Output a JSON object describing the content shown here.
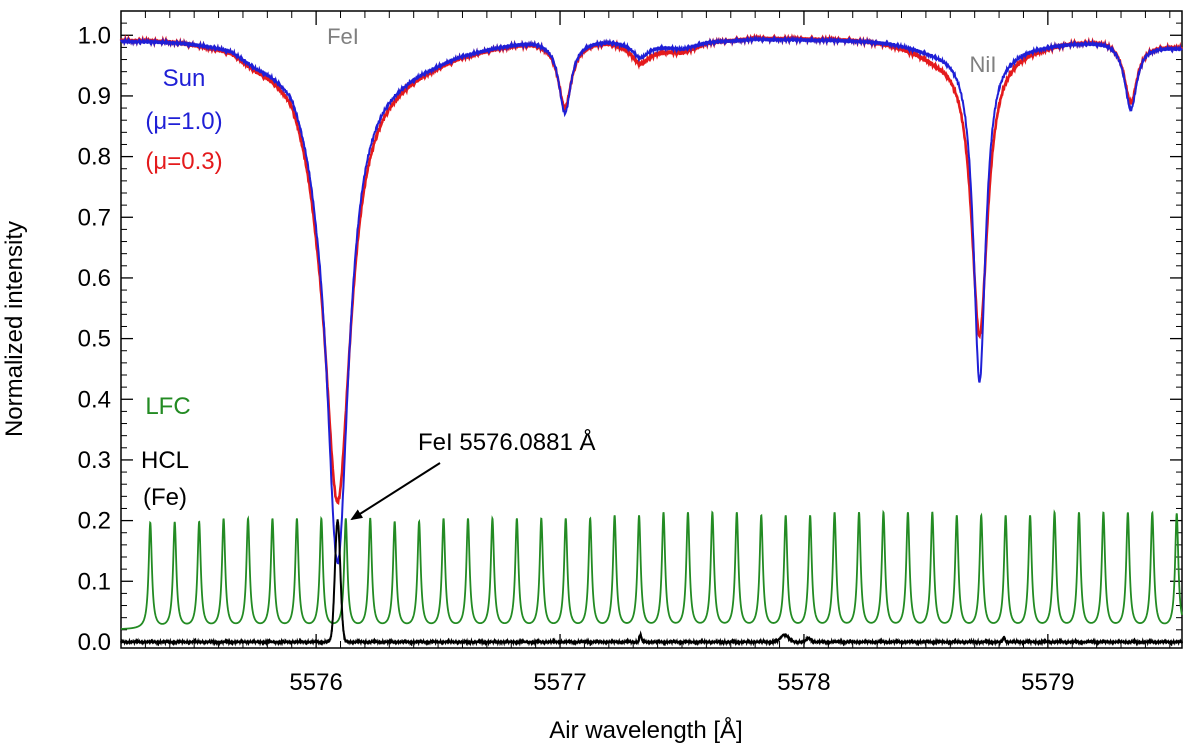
{
  "chart_data": {
    "type": "line",
    "xlabel": "Air wavelength [Å]",
    "ylabel": "Normalized intensity",
    "xlim": [
      5575.2,
      5579.55
    ],
    "ylim": [
      -0.01,
      1.04
    ],
    "x_ticks": [
      5576,
      5577,
      5578,
      5579
    ],
    "x_tick_labels": [
      "5576",
      "5577",
      "5578",
      "5579"
    ],
    "y_ticks": [
      0.0,
      0.1,
      0.2,
      0.3,
      0.4,
      0.5,
      0.6,
      0.7,
      0.8,
      0.9,
      1.0
    ],
    "y_tick_labels": [
      "0.0",
      "0.1",
      "0.2",
      "0.3",
      "0.4",
      "0.5",
      "0.6",
      "0.7",
      "0.8",
      "0.9",
      "1.0"
    ],
    "grid": false,
    "colors": {
      "sun_mu10": "#1f1fd6",
      "sun_mu03": "#e41a1c",
      "lfc": "#238b23",
      "hcl": "#000000",
      "line_label": "#808080",
      "annotation": "#000000"
    },
    "series": [
      {
        "name": "(μ=1.0)",
        "key": "sun_mu10",
        "continuum": [
          [
            5575.2,
            0.993
          ],
          [
            5575.4,
            0.993
          ],
          [
            5575.55,
            0.99
          ],
          [
            5575.65,
            0.985
          ],
          [
            5575.75,
            0.965
          ],
          [
            5575.9,
            0.955
          ],
          [
            5576.0,
            0.9
          ],
          [
            5576.6,
            0.975
          ],
          [
            5576.8,
            0.99
          ],
          [
            5576.9,
            0.995
          ],
          [
            5577.2,
            0.995
          ],
          [
            5577.35,
            0.99
          ],
          [
            5577.5,
            0.98
          ],
          [
            5577.6,
            0.99
          ],
          [
            5577.8,
            0.995
          ],
          [
            5578.2,
            0.993
          ],
          [
            5578.35,
            0.99
          ],
          [
            5578.5,
            0.98
          ],
          [
            5578.55,
            0.978
          ],
          [
            5578.85,
            0.98
          ],
          [
            5578.95,
            0.985
          ],
          [
            5579.1,
            0.99
          ],
          [
            5579.25,
            0.993
          ],
          [
            5579.55,
            0.98
          ]
        ],
        "lines": [
          {
            "center": 5576.0881,
            "depth": 0.78,
            "width": 0.055
          },
          {
            "center": 5577.02,
            "depth": 0.12,
            "width": 0.03
          },
          {
            "center": 5577.33,
            "depth": 0.025,
            "width": 0.04
          },
          {
            "center": 5578.72,
            "depth": 0.55,
            "width": 0.03
          },
          {
            "center": 5579.34,
            "depth": 0.11,
            "width": 0.03
          }
        ]
      },
      {
        "name": "(μ=0.3)",
        "key": "sun_mu03",
        "continuum": [
          [
            5575.2,
            0.995
          ],
          [
            5575.4,
            0.995
          ],
          [
            5575.55,
            0.99
          ],
          [
            5575.65,
            0.985
          ],
          [
            5575.75,
            0.965
          ],
          [
            5575.9,
            0.955
          ],
          [
            5576.0,
            0.9
          ],
          [
            5576.6,
            0.975
          ],
          [
            5576.8,
            0.99
          ],
          [
            5576.9,
            0.995
          ],
          [
            5577.2,
            0.995
          ],
          [
            5577.35,
            0.985
          ],
          [
            5577.5,
            0.975
          ],
          [
            5577.6,
            0.99
          ],
          [
            5577.8,
            0.997
          ],
          [
            5578.2,
            0.995
          ],
          [
            5578.35,
            0.99
          ],
          [
            5578.5,
            0.975
          ],
          [
            5578.55,
            0.97
          ],
          [
            5578.85,
            0.98
          ],
          [
            5578.95,
            0.985
          ],
          [
            5579.1,
            0.993
          ],
          [
            5579.25,
            0.995
          ],
          [
            5579.55,
            0.982
          ]
        ],
        "lines": [
          {
            "center": 5576.0881,
            "depth": 0.68,
            "width": 0.065
          },
          {
            "center": 5577.02,
            "depth": 0.11,
            "width": 0.033
          },
          {
            "center": 5577.33,
            "depth": 0.03,
            "width": 0.045
          },
          {
            "center": 5578.72,
            "depth": 0.47,
            "width": 0.04
          },
          {
            "center": 5579.34,
            "depth": 0.1,
            "width": 0.032
          }
        ]
      },
      {
        "name": "LFC",
        "key": "lfc",
        "type": "comb",
        "start": 5575.32,
        "spacing": 0.1002,
        "count": 43,
        "base": 0.02,
        "peak_heights": [
          0.195,
          0.195,
          0.195,
          0.2,
          0.2,
          0.2,
          0.2,
          0.2,
          0.2,
          0.2,
          0.195,
          0.195,
          0.2,
          0.2,
          0.2,
          0.2,
          0.2,
          0.2,
          0.2,
          0.205,
          0.205,
          0.21,
          0.21,
          0.21,
          0.21,
          0.205,
          0.205,
          0.205,
          0.21,
          0.21,
          0.21,
          0.21,
          0.21,
          0.205,
          0.205,
          0.205,
          0.205,
          0.21,
          0.21,
          0.21,
          0.21,
          0.21,
          0.21
        ],
        "width": 0.008
      },
      {
        "name": "HCL",
        "key": "hcl",
        "type": "emission",
        "base": 0.0,
        "lines": [
          {
            "center": 5576.0881,
            "height": 0.2,
            "width": 0.011
          },
          {
            "center": 5577.33,
            "height": 0.012,
            "width": 0.004
          },
          {
            "center": 5577.92,
            "height": 0.012,
            "width": 0.015
          },
          {
            "center": 5578.02,
            "height": 0.006,
            "width": 0.01
          },
          {
            "center": 5578.82,
            "height": 0.008,
            "width": 0.004
          }
        ]
      }
    ],
    "line_labels": [
      {
        "text": "FeI",
        "x": 5576.0,
        "y": 1.0
      },
      {
        "text": "NiI",
        "x": 5578.72,
        "y": 1.0
      }
    ],
    "legend": {
      "sun": "Sun",
      "mu10": "(μ=1.0)",
      "mu03": "(μ=0.3)",
      "lfc": "LFC",
      "hcl": "HCL",
      "hcl_element": "(Fe)",
      "placement": "left"
    },
    "annotation": {
      "text": "FeI 5576.0881 Å",
      "target_x": 5576.0881,
      "target_y": 0.2
    }
  }
}
